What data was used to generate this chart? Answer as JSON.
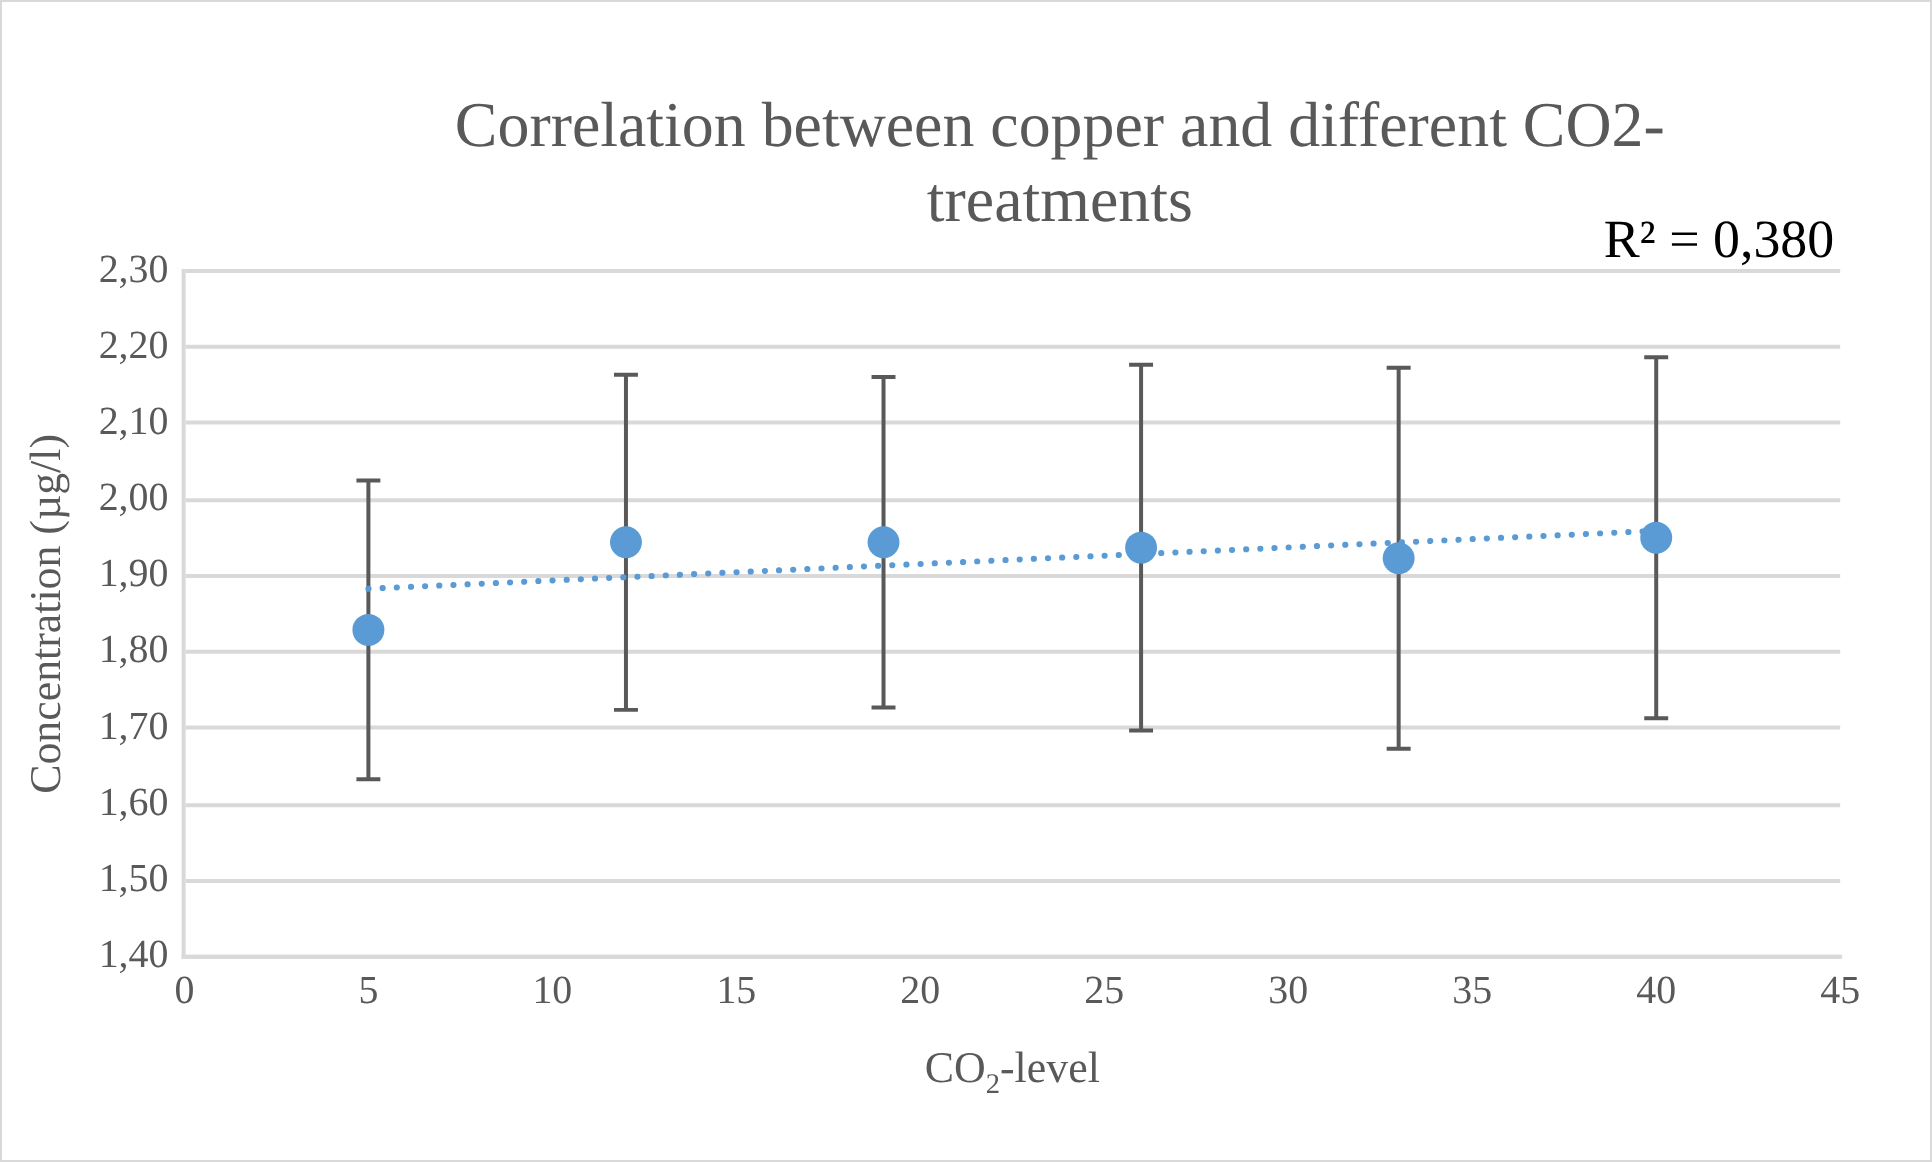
{
  "chart_data": {
    "type": "scatter",
    "title": "Correlation between copper and different CO2-treatments",
    "xlabel": "CO$_{2}$-level",
    "ylabel": "Concentration (µg/l)",
    "x": [
      5,
      12,
      19,
      26,
      33,
      40
    ],
    "series": [
      {
        "color": "#5b9bd5",
        "values": [
          1.829,
          1.944,
          1.944,
          1.937,
          1.923,
          1.95
        ],
        "errors": [
          0.196,
          0.22,
          0.217,
          0.24,
          0.25,
          0.237
        ]
      },
      {
        "type": "line",
        "color": "#5b9bd5",
        "x": [
          5,
          40
        ],
        "values": [
          1.883,
          1.959
        ],
        "line_style": "dotted",
        "marker": "none"
      }
    ],
    "marker": "circle",
    "xlim": [
      0,
      45
    ],
    "xticks": [
      0,
      5,
      10,
      15,
      20,
      25,
      30,
      35,
      40,
      45
    ],
    "ylim": [
      1.4,
      2.3
    ],
    "yticks": [
      {
        "value": 1.4,
        "label": "1,40"
      },
      {
        "value": 1.5,
        "label": "1,50"
      },
      {
        "value": 1.6,
        "label": "1,60"
      },
      {
        "value": 1.7,
        "label": "1,70"
      },
      {
        "value": 1.8,
        "label": "1,80"
      },
      {
        "value": 1.9,
        "label": "1,90"
      },
      {
        "value": 2.0,
        "label": "2,00"
      },
      {
        "value": 2.1,
        "label": "2,10"
      },
      {
        "value": 2.2,
        "label": "2,20"
      },
      {
        "value": 2.3,
        "label": "2,30"
      }
    ],
    "grid": "y",
    "legend": false,
    "annotations": [
      "R² = 0,380"
    ]
  }
}
